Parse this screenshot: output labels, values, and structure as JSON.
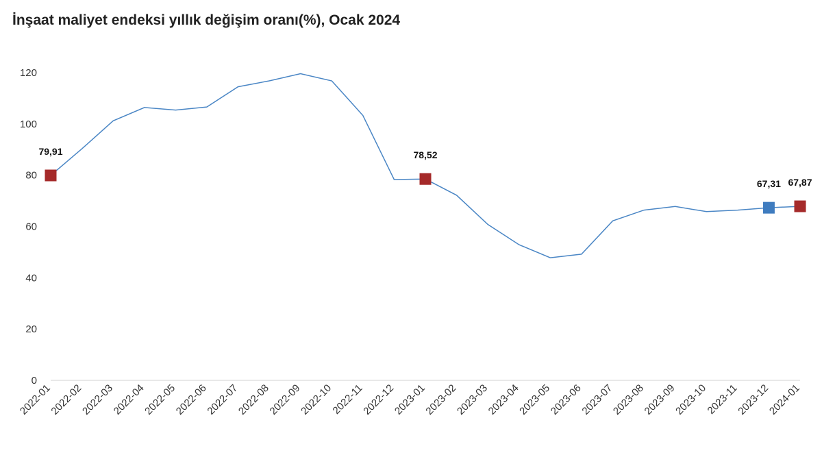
{
  "chart_data": {
    "type": "line",
    "title": "İnşaat maliyet endeksi yıllık değişim oranı(%), Ocak 2024",
    "xlabel": "",
    "ylabel": "",
    "ylim": [
      0,
      120
    ],
    "yticks": [
      0,
      20,
      40,
      60,
      80,
      100,
      120
    ],
    "grid": false,
    "x": [
      "2022-01",
      "2022-02",
      "2022-03",
      "2022-04",
      "2022-05",
      "2022-06",
      "2022-07",
      "2022-08",
      "2022-09",
      "2022-10",
      "2022-11",
      "2022-12",
      "2023-01",
      "2023-02",
      "2023-03",
      "2023-04",
      "2023-05",
      "2023-06",
      "2023-07",
      "2023-08",
      "2023-09",
      "2023-10",
      "2023-11",
      "2023-12",
      "2024-01"
    ],
    "series": [
      {
        "values": [
          79.91,
          90.3,
          101.2,
          106.4,
          105.4,
          106.6,
          114.5,
          116.8,
          119.6,
          116.8,
          103.3,
          78.3,
          78.52,
          72.2,
          60.8,
          52.9,
          47.8,
          49.2,
          62.2,
          66.4,
          67.8,
          65.8,
          66.4,
          67.31,
          67.87
        ],
        "color": "#4a86c5"
      }
    ],
    "highlights": [
      {
        "index": 0,
        "label": "79,91",
        "color": "#a52a2a"
      },
      {
        "index": 12,
        "label": "78,52",
        "color": "#a52a2a"
      },
      {
        "index": 23,
        "label": "67,31",
        "color": "#3f7cbf"
      },
      {
        "index": 24,
        "label": "67,87",
        "color": "#a52a2a"
      }
    ]
  }
}
